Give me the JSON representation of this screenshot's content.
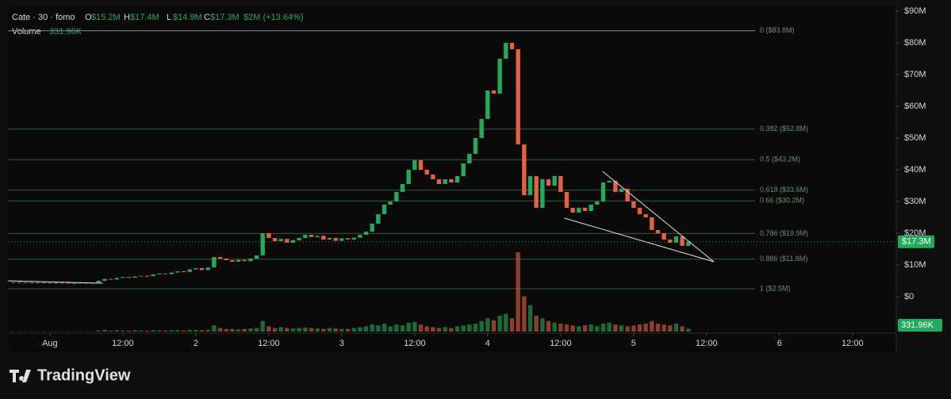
{
  "header": {
    "symbol": "Cate · 30 · fomo",
    "ohlc": [
      {
        "label": "O",
        "value": "$15.2M"
      },
      {
        "label": "H",
        "value": "$17.4M"
      },
      {
        "label": "L",
        "value": "$14.9M"
      },
      {
        "label": "C",
        "value": "$17.3M"
      }
    ],
    "change": "$2M (+13.64%)",
    "volume_label": "Volume",
    "volume_value": "331.96K"
  },
  "brand": "TradingView",
  "chart_data": {
    "type": "candlestick",
    "up_color": "#22ab5c",
    "down_color": "#e8603c",
    "x": [
      -6,
      -5,
      -4,
      -3,
      -2,
      -1,
      0,
      1,
      2,
      3,
      4,
      5,
      6,
      7,
      8,
      9,
      10,
      11,
      12,
      13,
      14,
      15,
      16,
      17,
      18,
      19,
      20,
      21,
      22,
      23,
      24,
      25,
      26,
      27,
      28,
      29,
      30,
      31,
      32,
      33,
      34,
      35,
      36,
      37,
      38,
      39,
      40,
      41,
      42,
      43,
      44,
      45,
      46,
      47,
      48,
      49,
      50,
      51,
      52,
      53,
      54,
      55,
      56,
      57,
      58,
      59,
      60,
      61,
      62,
      63,
      64,
      65,
      66,
      67,
      68,
      69,
      70,
      71,
      72,
      73,
      74,
      75,
      76,
      77,
      78,
      79,
      80,
      81,
      82,
      83,
      84,
      85,
      86,
      87,
      88,
      89,
      90,
      91,
      92,
      93,
      94,
      95,
      96,
      97,
      98,
      99,
      100,
      101,
      102,
      103,
      104,
      105
    ],
    "closes": [
      4.6,
      4.5,
      4.5,
      4.4,
      4.5,
      4.4,
      4.4,
      4.3,
      4.4,
      4.3,
      4.3,
      4.4,
      4.3,
      4.4,
      5.0,
      5.6,
      5.4,
      5.9,
      6.2,
      6.0,
      6.4,
      6.6,
      6.5,
      7.0,
      7.3,
      7.1,
      7.6,
      8.0,
      7.8,
      8.6,
      9.0,
      8.4,
      9.2,
      12.5,
      12.0,
      11.5,
      11.0,
      11.6,
      11.2,
      12.0,
      13.0,
      20.0,
      18.5,
      17.5,
      18.2,
      17.0,
      17.8,
      18.5,
      19.5,
      18.8,
      19.2,
      18.0,
      18.5,
      17.6,
      18.4,
      18.0,
      18.6,
      19.5,
      20.5,
      23.0,
      26.0,
      29.0,
      30.0,
      33.0,
      35.5,
      40.0,
      43.0,
      40.0,
      38.5,
      37.0,
      35.5,
      37.0,
      36.0,
      38.0,
      42.0,
      45.0,
      50.0,
      56.0,
      65.0,
      64.0,
      75.0,
      80.0,
      78.0,
      48.0,
      32.0,
      38.0,
      28.0,
      37.0,
      35.0,
      38.0,
      33.0,
      28.0,
      26.5,
      28.0,
      27.0,
      29.0,
      30.0,
      36.0,
      36.5,
      33.0,
      34.0,
      30.0,
      28.0,
      26.0,
      25.0,
      21.0,
      20.0,
      18.0,
      17.0,
      19.0,
      16.0,
      17.3
    ],
    "volumes": [
      40,
      30,
      30,
      30,
      30,
      30,
      30,
      30,
      30,
      30,
      30,
      30,
      30,
      30,
      120,
      200,
      100,
      150,
      120,
      100,
      150,
      120,
      100,
      150,
      130,
      120,
      150,
      170,
      130,
      200,
      180,
      150,
      200,
      700,
      400,
      300,
      300,
      250,
      300,
      350,
      400,
      1200,
      600,
      400,
      500,
      400,
      350,
      400,
      450,
      400,
      350,
      300,
      400,
      350,
      300,
      300,
      400,
      500,
      600,
      800,
      700,
      900,
      600,
      800,
      700,
      1000,
      1100,
      800,
      600,
      500,
      400,
      500,
      400,
      600,
      700,
      800,
      900,
      1200,
      1500,
      1300,
      1800,
      2000,
      1500,
      9000,
      4000,
      3000,
      1800,
      1500,
      1200,
      1000,
      900,
      800,
      700,
      600,
      700,
      800,
      600,
      900,
      1000,
      800,
      700,
      600,
      700,
      800,
      900,
      1200,
      900,
      800,
      700,
      900,
      600,
      331.96
    ],
    "xlim": [
      -6.9,
      139.2
    ],
    "ylim": [
      -11,
      92
    ],
    "xticks": [
      {
        "value": 0,
        "label": "Aug"
      },
      {
        "value": 12,
        "label": "12:00"
      },
      {
        "value": 24,
        "label": "2"
      },
      {
        "value": 36,
        "label": "12:00"
      },
      {
        "value": 48,
        "label": "3"
      },
      {
        "value": 60,
        "label": "12:00"
      },
      {
        "value": 72,
        "label": "4"
      },
      {
        "value": 84,
        "label": "12:00"
      },
      {
        "value": 96,
        "label": "5"
      },
      {
        "value": 108,
        "label": "12:00"
      },
      {
        "value": 120,
        "label": "6"
      },
      {
        "value": 132,
        "label": "12:00"
      }
    ],
    "yticks": [
      {
        "value": 0,
        "label": "$0"
      },
      {
        "value": 10,
        "label": "$10M"
      },
      {
        "value": 20,
        "label": "$20M"
      },
      {
        "value": 30,
        "label": "$30M"
      },
      {
        "value": 40,
        "label": "$40M"
      },
      {
        "value": 50,
        "label": "$50M"
      },
      {
        "value": 60,
        "label": "$60M"
      },
      {
        "value": 70,
        "label": "$70M"
      },
      {
        "value": 80,
        "label": "$80M"
      },
      {
        "value": 90,
        "label": "$90M"
      }
    ],
    "last_price": {
      "value": 17.3,
      "label": "$17.3M"
    },
    "fib_levels": [
      {
        "value": 83.8,
        "label": "0 ($83.8M)"
      },
      {
        "value": 52.8,
        "label": "0.382 ($52.8M)"
      },
      {
        "value": 43.2,
        "label": "0.5 ($43.2M)"
      },
      {
        "value": 33.6,
        "label": "0.618 ($33.6M)"
      },
      {
        "value": 30.2,
        "label": "0.66 ($30.2M)"
      },
      {
        "value": 19.9,
        "label": "0.786 ($19.9M)"
      },
      {
        "value": 11.8,
        "label": "0.886 ($11.8M)"
      },
      {
        "value": 2.5,
        "label": "1 ($2.5M)"
      }
    ],
    "trend_lines": [
      {
        "x": [
          90.9,
          109.2
        ],
        "y": [
          39.5,
          11
        ]
      },
      {
        "x": [
          84.6,
          109.2
        ],
        "y": [
          24.75,
          11
        ]
      },
      {
        "x": [
          -6.9,
          8.7
        ],
        "y": [
          5,
          4.25
        ]
      }
    ]
  }
}
